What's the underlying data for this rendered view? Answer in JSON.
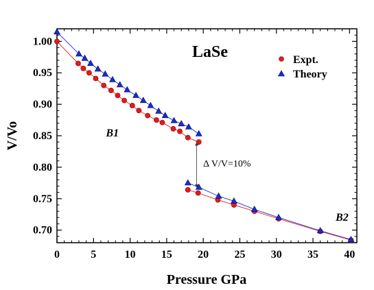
{
  "chart_data": {
    "type": "scatter",
    "title": "LaSe",
    "xlabel": "Pressure GPa",
    "ylabel": "V/Vo",
    "xlim": [
      0,
      41
    ],
    "ylim": [
      0.68,
      1.02
    ],
    "xticks": [
      0,
      5,
      10,
      15,
      20,
      25,
      30,
      35,
      40
    ],
    "xtick_labels": [
      "0",
      "5",
      "10",
      "15",
      "20",
      "25",
      "30",
      "35",
      "40"
    ],
    "yticks": [
      0.7,
      0.75,
      0.8,
      0.85,
      0.9,
      0.95,
      1.0
    ],
    "ytick_labels": [
      "0.70",
      "0.75",
      "0.80",
      "0.85",
      "0.90",
      "0.95",
      "1.00"
    ],
    "legend_position": "top-right",
    "series": [
      {
        "name": "Expt.",
        "marker": "circle",
        "color": "#e41a1c",
        "line_color": "#e41a1c",
        "segments": [
          [
            [
              0,
              1.0
            ],
            [
              2.9,
              0.965
            ],
            [
              3.6,
              0.957
            ],
            [
              4.4,
              0.95
            ],
            [
              5.3,
              0.941
            ],
            [
              6.4,
              0.93
            ],
            [
              7.4,
              0.922
            ],
            [
              8.3,
              0.914
            ],
            [
              9.2,
              0.906
            ],
            [
              10.3,
              0.898
            ],
            [
              11.2,
              0.89
            ],
            [
              12.4,
              0.882
            ],
            [
              13.6,
              0.875
            ],
            [
              14.4,
              0.871
            ],
            [
              15.9,
              0.861
            ],
            [
              16.8,
              0.857
            ],
            [
              17.9,
              0.847
            ],
            [
              19.4,
              0.84
            ]
          ],
          [
            [
              17.9,
              0.764
            ],
            [
              19.3,
              0.759
            ],
            [
              22.0,
              0.748
            ],
            [
              24.2,
              0.74
            ],
            [
              27.0,
              0.73
            ],
            [
              30.3,
              0.718
            ],
            [
              36.0,
              0.698
            ],
            [
              40.2,
              0.684
            ]
          ]
        ]
      },
      {
        "name": "Theory",
        "marker": "triangle",
        "color": "#1a2bd6",
        "line_color": "#1a2bd6",
        "segments": [
          [
            [
              0,
              1.015
            ],
            [
              3.0,
              0.98
            ],
            [
              3.8,
              0.973
            ],
            [
              4.6,
              0.965
            ],
            [
              5.6,
              0.956
            ],
            [
              6.6,
              0.948
            ],
            [
              7.6,
              0.939
            ],
            [
              8.6,
              0.931
            ],
            [
              9.6,
              0.923
            ],
            [
              10.8,
              0.914
            ],
            [
              11.8,
              0.906
            ],
            [
              12.8,
              0.898
            ],
            [
              13.9,
              0.889
            ],
            [
              14.8,
              0.882
            ],
            [
              16.0,
              0.874
            ],
            [
              17.0,
              0.869
            ],
            [
              18.0,
              0.864
            ],
            [
              19.4,
              0.853
            ]
          ],
          [
            [
              17.9,
              0.775
            ],
            [
              19.4,
              0.768
            ],
            [
              22.1,
              0.754
            ],
            [
              24.2,
              0.746
            ],
            [
              27.0,
              0.733
            ],
            [
              30.3,
              0.72
            ],
            [
              36.0,
              0.699
            ],
            [
              40.2,
              0.685
            ]
          ]
        ]
      }
    ],
    "annotations": {
      "phase_b1": {
        "text": "B1",
        "x": 6.7,
        "y": 0.849
      },
      "phase_b2": {
        "text": "B2",
        "x": 38.1,
        "y": 0.715
      },
      "volume_drop": {
        "text": "Δ V/V=10%",
        "x": 20.0,
        "y": 0.801,
        "arrow_x": 19.1,
        "arrow_from": 0.837,
        "arrow_to": 0.77
      }
    }
  }
}
